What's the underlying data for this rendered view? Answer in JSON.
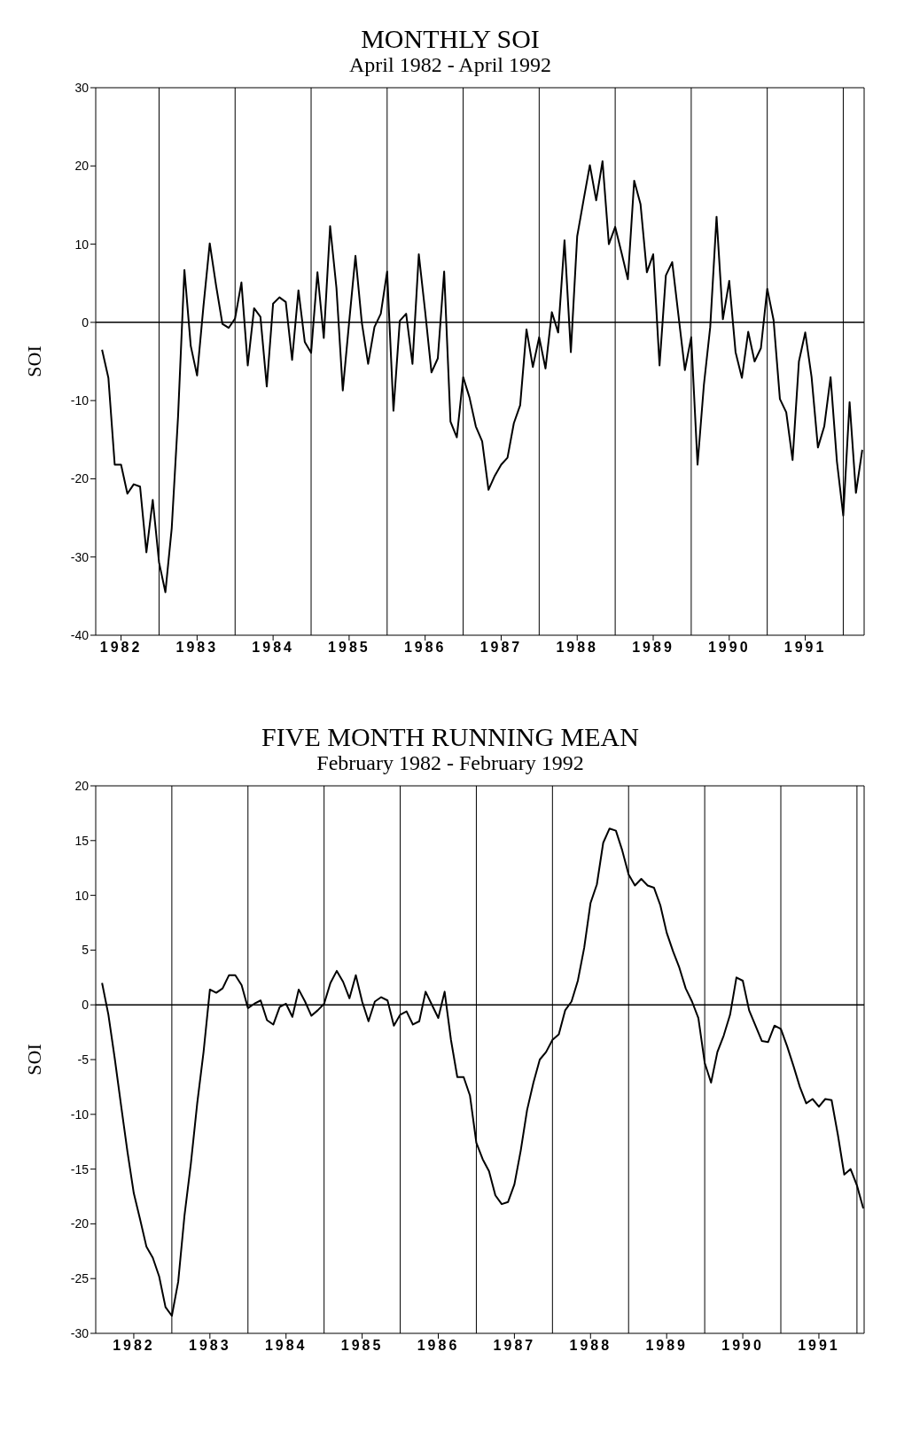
{
  "chart_data": [
    {
      "type": "line",
      "title": "MONTHLY SOI",
      "subtitle": "April 1982 - April 1992",
      "ylabel": "SOI",
      "xlim": [
        "1982-03",
        "1992-04-10"
      ],
      "ylim": [
        -40,
        30
      ],
      "yticks": [
        -40,
        -30,
        -20,
        -10,
        0,
        10,
        20,
        30
      ],
      "xticks": [
        {
          "value": "1982-07",
          "label": "1982"
        },
        {
          "value": "1983-07",
          "label": "1983"
        },
        {
          "value": "1984-07",
          "label": "1984"
        },
        {
          "value": "1985-07",
          "label": "1985"
        },
        {
          "value": "1986-07",
          "label": "1986"
        },
        {
          "value": "1987-07",
          "label": "1987"
        },
        {
          "value": "1988-07",
          "label": "1988"
        },
        {
          "value": "1989-07",
          "label": "1989"
        },
        {
          "value": "1990-07",
          "label": "1990"
        },
        {
          "value": "1991-07",
          "label": "1991"
        }
      ],
      "marker": "none",
      "line_style": "solid",
      "ref_lines": [
        {
          "axis": "y",
          "value": 0,
          "color": "#000000"
        },
        {
          "axis": "x",
          "value": "1983-01",
          "color": "#000000"
        },
        {
          "axis": "x",
          "value": "1984-01",
          "color": "#000000"
        },
        {
          "axis": "x",
          "value": "1985-01",
          "color": "#000000"
        },
        {
          "axis": "x",
          "value": "1986-01",
          "color": "#000000"
        },
        {
          "axis": "x",
          "value": "1987-01",
          "color": "#000000"
        },
        {
          "axis": "x",
          "value": "1988-01",
          "color": "#000000"
        },
        {
          "axis": "x",
          "value": "1989-01",
          "color": "#000000"
        },
        {
          "axis": "x",
          "value": "1990-01",
          "color": "#000000"
        },
        {
          "axis": "x",
          "value": "1991-01",
          "color": "#000000"
        },
        {
          "axis": "x",
          "value": "1992-01",
          "color": "#000000"
        }
      ],
      "series": [
        {
          "color": "#000000",
          "x": [
            "1982-04",
            "1982-05",
            "1982-06",
            "1982-07",
            "1982-08",
            "1982-09",
            "1982-10",
            "1982-11",
            "1982-12",
            "1983-01",
            "1983-02",
            "1983-03",
            "1983-04",
            "1983-05",
            "1983-06",
            "1983-07",
            "1983-08",
            "1983-09",
            "1983-10",
            "1983-11",
            "1983-12",
            "1984-01",
            "1984-02",
            "1984-03",
            "1984-04",
            "1984-05",
            "1984-06",
            "1984-07",
            "1984-08",
            "1984-09",
            "1984-10",
            "1984-11",
            "1984-12",
            "1985-01",
            "1985-02",
            "1985-03",
            "1985-04",
            "1985-05",
            "1985-06",
            "1985-07",
            "1985-08",
            "1985-09",
            "1985-10",
            "1985-11",
            "1985-12",
            "1986-01",
            "1986-02",
            "1986-03",
            "1986-04",
            "1986-05",
            "1986-06",
            "1986-07",
            "1986-08",
            "1986-09",
            "1986-10",
            "1986-11",
            "1986-12",
            "1987-01",
            "1987-02",
            "1987-03",
            "1987-04",
            "1987-05",
            "1987-06",
            "1987-07",
            "1987-08",
            "1987-09",
            "1987-10",
            "1987-11",
            "1987-12",
            "1988-01",
            "1988-02",
            "1988-03",
            "1988-04",
            "1988-05",
            "1988-06",
            "1988-07",
            "1988-08",
            "1988-09",
            "1988-10",
            "1988-11",
            "1988-12",
            "1989-01",
            "1989-02",
            "1989-03",
            "1989-04",
            "1989-05",
            "1989-06",
            "1989-07",
            "1989-08",
            "1989-09",
            "1989-10",
            "1989-11",
            "1989-12",
            "1990-01",
            "1990-02",
            "1990-03",
            "1990-04",
            "1990-05",
            "1990-06",
            "1990-07",
            "1990-08",
            "1990-09",
            "1990-10",
            "1990-11",
            "1990-12",
            "1991-01",
            "1991-02",
            "1991-03",
            "1991-04",
            "1991-05",
            "1991-06",
            "1991-07",
            "1991-08",
            "1991-09",
            "1991-10",
            "1991-11",
            "1991-12",
            "1992-01",
            "1992-02",
            "1992-03",
            "1992-04"
          ],
          "values": [
            -3.5,
            -7.1,
            -18.2,
            -18.2,
            -21.9,
            -20.7,
            -21.0,
            -29.4,
            -22.7,
            -30.7,
            -34.5,
            -26.3,
            -12,
            6.7,
            -3.0,
            -6.8,
            2,
            10.1,
            4.7,
            -0.2,
            -0.7,
            0.5,
            5.1,
            -5.5,
            1.8,
            0.7,
            -8.2,
            2.4,
            3.2,
            2.6,
            -4.8,
            4.1,
            -2.5,
            -3.9,
            6.4,
            -2.0,
            12.3,
            4.4,
            -8.7,
            0,
            8.5,
            0,
            -5.3,
            -0.6,
            1.1,
            6.5,
            -11.3,
            0.2,
            1.1,
            -5.3,
            8.7,
            1.4,
            -6.4,
            -4.6,
            6.5,
            -12.7,
            -14.7,
            -7.0,
            -9.6,
            -13.3,
            -15.2,
            -21.4,
            -19.6,
            -18.2,
            -17.3,
            -12.9,
            -10.6,
            -0.9,
            -5.7,
            -1.9,
            -5.9,
            1.3,
            -1.3,
            10.5,
            -3.8,
            11.0,
            15.6,
            20.1,
            15.6,
            20.6,
            10.0,
            12.2,
            8.9,
            5.5,
            18.1,
            15.1,
            6.4,
            8.7,
            -5.5,
            6.0,
            7.7,
            0.8,
            -6.1,
            -1.9,
            -18.2,
            -8.0,
            -0.6,
            13.5,
            0.4,
            5.3,
            -3.8,
            -7.1,
            -1.2,
            -5.0,
            -3.3,
            4.3,
            0.3,
            -9.8,
            -11.5,
            -17.6,
            -5.0,
            -1.3,
            -7.0,
            -16.0,
            -13.3,
            -7.0,
            -17.8,
            -24.7,
            -10.2,
            -21.8,
            -16.3
          ]
        }
      ]
    },
    {
      "type": "line",
      "title": "FIVE MONTH RUNNING MEAN",
      "subtitle": "February 1982 - February 1992",
      "ylabel": "SOI",
      "xlim": [
        "1982-01",
        "1992-02-05"
      ],
      "ylim": [
        -30,
        20
      ],
      "yticks": [
        -30,
        -25,
        -20,
        -15,
        -10,
        -5,
        0,
        5,
        10,
        15,
        20
      ],
      "xticks": [
        {
          "value": "1982-07",
          "label": "1982"
        },
        {
          "value": "1983-07",
          "label": "1983"
        },
        {
          "value": "1984-07",
          "label": "1984"
        },
        {
          "value": "1985-07",
          "label": "1985"
        },
        {
          "value": "1986-07",
          "label": "1986"
        },
        {
          "value": "1987-07",
          "label": "1987"
        },
        {
          "value": "1988-07",
          "label": "1988"
        },
        {
          "value": "1989-07",
          "label": "1989"
        },
        {
          "value": "1990-07",
          "label": "1990"
        },
        {
          "value": "1991-07",
          "label": "1991"
        }
      ],
      "marker": "none",
      "line_style": "solid",
      "ref_lines": [
        {
          "axis": "y",
          "value": 0,
          "color": "#000000"
        },
        {
          "axis": "x",
          "value": "1983-01",
          "color": "#000000"
        },
        {
          "axis": "x",
          "value": "1984-01",
          "color": "#000000"
        },
        {
          "axis": "x",
          "value": "1985-01",
          "color": "#000000"
        },
        {
          "axis": "x",
          "value": "1986-01",
          "color": "#000000"
        },
        {
          "axis": "x",
          "value": "1987-01",
          "color": "#000000"
        },
        {
          "axis": "x",
          "value": "1988-01",
          "color": "#000000"
        },
        {
          "axis": "x",
          "value": "1989-01",
          "color": "#000000"
        },
        {
          "axis": "x",
          "value": "1990-01",
          "color": "#000000"
        },
        {
          "axis": "x",
          "value": "1991-01",
          "color": "#000000"
        },
        {
          "axis": "x",
          "value": "1992-01",
          "color": "#000000"
        }
      ],
      "series": [
        {
          "color": "#000000",
          "x": [
            "1982-02",
            "1982-03",
            "1982-04",
            "1982-05",
            "1982-06",
            "1982-07",
            "1982-08",
            "1982-09",
            "1982-10",
            "1982-11",
            "1982-12",
            "1983-01",
            "1983-02",
            "1983-03",
            "1983-04",
            "1983-05",
            "1983-06",
            "1983-07",
            "1983-08",
            "1983-09",
            "1983-10",
            "1983-11",
            "1983-12",
            "1984-01",
            "1984-02",
            "1984-03",
            "1984-04",
            "1984-05",
            "1984-06",
            "1984-07",
            "1984-08",
            "1984-09",
            "1984-10",
            "1984-11",
            "1984-12",
            "1985-01",
            "1985-02",
            "1985-03",
            "1985-04",
            "1985-05",
            "1985-06",
            "1985-07",
            "1985-08",
            "1985-09",
            "1985-10",
            "1985-11",
            "1985-12",
            "1986-01",
            "1986-02",
            "1986-03",
            "1986-04",
            "1986-05",
            "1986-06",
            "1986-07",
            "1986-08",
            "1986-09",
            "1986-10",
            "1986-11",
            "1986-12",
            "1987-01",
            "1987-02",
            "1987-03",
            "1987-04",
            "1987-05",
            "1987-06",
            "1987-07",
            "1987-08",
            "1987-09",
            "1987-10",
            "1987-11",
            "1987-12",
            "1988-01",
            "1988-02",
            "1988-03",
            "1988-04",
            "1988-05",
            "1988-06",
            "1988-07",
            "1988-08",
            "1988-09",
            "1988-10",
            "1988-11",
            "1988-12",
            "1989-01",
            "1989-02",
            "1989-03",
            "1989-04",
            "1989-05",
            "1989-06",
            "1989-07",
            "1989-08",
            "1989-09",
            "1989-10",
            "1989-11",
            "1989-12",
            "1990-01",
            "1990-02",
            "1990-03",
            "1990-04",
            "1990-05",
            "1990-06",
            "1990-07",
            "1990-08",
            "1990-09",
            "1990-10",
            "1990-11",
            "1990-12",
            "1991-01",
            "1991-02",
            "1991-03",
            "1991-04",
            "1991-05",
            "1991-06",
            "1991-07",
            "1991-08",
            "1991-09",
            "1991-10",
            "1991-11",
            "1991-12",
            "1992-01",
            "1992-02"
          ],
          "values": [
            2.0,
            -0.9,
            -4.9,
            -9.2,
            -13.4,
            -17.2,
            -19.6,
            -22.1,
            -23.1,
            -24.8,
            -27.6,
            -28.4,
            -25.3,
            -19.2,
            -14.5,
            -9.0,
            -4.3,
            1.4,
            1.1,
            1.5,
            2.7,
            2.7,
            1.8,
            -0.3,
            0.1,
            0.4,
            -1.4,
            -1.8,
            -0.2,
            0.1,
            -1.1,
            1.4,
            0.3,
            -1.0,
            -0.5,
            0.1,
            2.0,
            3.1,
            2.1,
            0.6,
            2.7,
            0.3,
            -1.5,
            0.3,
            0.7,
            0.4,
            -1.9,
            -0.9,
            -0.6,
            -1.8,
            -1.5,
            1.2,
            0,
            -1.2,
            1.2,
            -3.2,
            -6.6,
            -6.6,
            -8.3,
            -12.6,
            -14.1,
            -15.2,
            -17.4,
            -18.2,
            -18.0,
            -16.4,
            -13.3,
            -9.6,
            -7.1,
            -5.0,
            -4.3,
            -3.2,
            -2.7,
            -0.5,
            0.3,
            2.2,
            5.2,
            9.3,
            11.0,
            14.8,
            16.1,
            15.9,
            14.1,
            11.9,
            10.9,
            11.5,
            10.9,
            10.7,
            9.1,
            6.6,
            4.9,
            3.4,
            1.5,
            0.3,
            -1.2,
            -5.3,
            -7.1,
            -4.3,
            -2.8,
            -0.9,
            2.5,
            2.2,
            -0.5,
            -1.9,
            -3.3,
            -3.4,
            -1.9,
            -2.2,
            -3.8,
            -5.6,
            -7.5,
            -9.0,
            -8.6,
            -9.3,
            -8.6,
            -8.7,
            -11.9,
            -15.5,
            -15.0,
            -16.5,
            -18.6
          ]
        }
      ]
    }
  ]
}
